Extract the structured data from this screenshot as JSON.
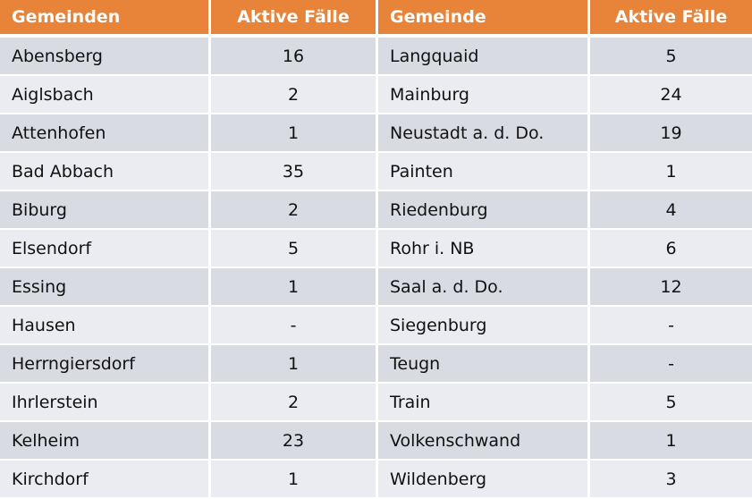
{
  "table": {
    "headers": [
      "Gemeinden",
      "Aktive Fälle",
      "Gemeinde",
      "Aktive Fälle"
    ],
    "rows": [
      [
        "Abensberg",
        16,
        "Langquaid",
        5
      ],
      [
        "Aiglsbach",
        2,
        "Mainburg",
        24
      ],
      [
        "Attenhofen",
        1,
        "Neustadt a. d. Do.",
        19
      ],
      [
        "Bad Abbach",
        35,
        "Painten",
        1
      ],
      [
        "Biburg",
        2,
        "Riedenburg",
        4
      ],
      [
        "Elsendorf",
        5,
        "Rohr i. NB",
        6
      ],
      [
        "Essing",
        1,
        "Saal a. d. Do.",
        12
      ],
      [
        "Hausen",
        "-",
        "Siegenburg",
        "-"
      ],
      [
        "Herrngiersdorf",
        1,
        "Teugn",
        "-"
      ],
      [
        "Ihrlerstein",
        2,
        "Train",
        5
      ],
      [
        "Kelheim",
        23,
        "Volkenschwand",
        1
      ],
      [
        "Kirchdorf",
        1,
        "Wildenberg",
        3
      ]
    ]
  }
}
